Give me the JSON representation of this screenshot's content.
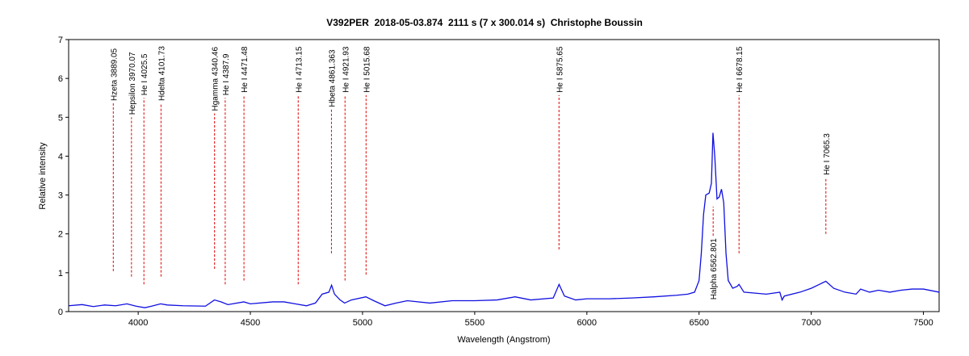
{
  "chart_data": {
    "type": "line",
    "title": "V392PER  2018-05-03.874  2111 s (7 x 300.014 s)  Christophe Boussin",
    "x_label": "Wavelength (Angstrom)",
    "y_label": "Relative intensity",
    "xlim": [
      3690,
      7570
    ],
    "ylim": [
      0,
      7
    ],
    "xticks": [
      4000,
      4500,
      5000,
      5500,
      6000,
      6500,
      7000,
      7500
    ],
    "yticks": [
      0,
      1,
      2,
      3,
      4,
      5,
      6,
      7
    ],
    "grid": false,
    "x": [
      3690,
      3750,
      3800,
      3850,
      3900,
      3950,
      3990,
      4030,
      4060,
      4100,
      4130,
      4200,
      4300,
      4340,
      4370,
      4400,
      4471,
      4500,
      4600,
      4650,
      4700,
      4750,
      4790,
      4820,
      4850,
      4862,
      4875,
      4900,
      4920,
      4950,
      5015,
      5050,
      5100,
      5150,
      5200,
      5300,
      5400,
      5500,
      5600,
      5680,
      5750,
      5850,
      5876,
      5900,
      5950,
      6000,
      6100,
      6200,
      6300,
      6400,
      6450,
      6480,
      6500,
      6510,
      6520,
      6530,
      6545,
      6555,
      6562,
      6570,
      6580,
      6590,
      6600,
      6610,
      6620,
      6630,
      6650,
      6670,
      6678,
      6700,
      6800,
      6860,
      6870,
      6880,
      6950,
      7000,
      7065,
      7100,
      7150,
      7200,
      7220,
      7260,
      7300,
      7350,
      7400,
      7450,
      7500,
      7570
    ],
    "series": [
      {
        "name": "V392PER",
        "color": "#1010e0",
        "values": [
          0.15,
          0.18,
          0.13,
          0.17,
          0.15,
          0.2,
          0.14,
          0.1,
          0.14,
          0.2,
          0.17,
          0.15,
          0.14,
          0.3,
          0.25,
          0.18,
          0.25,
          0.2,
          0.25,
          0.25,
          0.2,
          0.15,
          0.22,
          0.45,
          0.5,
          0.68,
          0.45,
          0.3,
          0.22,
          0.3,
          0.38,
          0.28,
          0.15,
          0.22,
          0.28,
          0.22,
          0.28,
          0.28,
          0.3,
          0.38,
          0.3,
          0.35,
          0.7,
          0.4,
          0.3,
          0.33,
          0.33,
          0.35,
          0.38,
          0.42,
          0.45,
          0.5,
          0.8,
          1.5,
          2.5,
          3.0,
          3.05,
          3.3,
          4.6,
          4.0,
          2.9,
          2.95,
          3.15,
          2.8,
          1.5,
          0.8,
          0.6,
          0.65,
          0.7,
          0.5,
          0.45,
          0.5,
          0.3,
          0.4,
          0.5,
          0.6,
          0.78,
          0.6,
          0.5,
          0.45,
          0.58,
          0.5,
          0.55,
          0.5,
          0.55,
          0.58,
          0.58,
          0.5
        ]
      }
    ],
    "annotation_color": "#e00000",
    "annotations": [
      {
        "label": "Hzeta 3889.05",
        "x": 3889.05,
        "ymin": 1.04,
        "ymax": 5.36,
        "position": "above"
      },
      {
        "label": "Hepsilon 3970.07",
        "x": 3970.07,
        "ymin": 0.9,
        "ymax": 5.0,
        "position": "above"
      },
      {
        "label": "He I 4025.5",
        "x": 4025.5,
        "ymin": 0.7,
        "ymax": 5.5,
        "position": "above"
      },
      {
        "label": "Hdelta 4101.73",
        "x": 4101.73,
        "ymin": 0.9,
        "ymax": 5.36,
        "position": "above"
      },
      {
        "label": "Hgamma 4340.46",
        "x": 4340.46,
        "ymin": 1.1,
        "ymax": 5.1,
        "position": "above"
      },
      {
        "label": "He I 4387.9",
        "x": 4387.9,
        "ymin": 0.7,
        "ymax": 5.5,
        "position": "above"
      },
      {
        "label": "He I 4471.48",
        "x": 4471.48,
        "ymin": 0.8,
        "ymax": 5.57,
        "position": "above"
      },
      {
        "label": "He I 4713.15",
        "x": 4713.15,
        "ymin": 0.7,
        "ymax": 5.57,
        "position": "above"
      },
      {
        "label": "Hbeta 4861.363",
        "x": 4861.363,
        "ymin": 1.5,
        "ymax": 5.2,
        "position": "above"
      },
      {
        "label": "He I 4921.93",
        "x": 4921.93,
        "ymin": 0.8,
        "ymax": 5.57,
        "position": "above"
      },
      {
        "label": "He I 5015.68",
        "x": 5015.68,
        "ymin": 0.95,
        "ymax": 5.57,
        "position": "above"
      },
      {
        "label": "He I 5875.65",
        "x": 5875.65,
        "ymin": 1.6,
        "ymax": 5.57,
        "position": "above"
      },
      {
        "label": "He I 6678.15",
        "x": 6678.15,
        "ymin": 1.5,
        "ymax": 5.57,
        "position": "above"
      },
      {
        "label": "He I 7065.3",
        "x": 7065.3,
        "ymin": 2.0,
        "ymax": 3.45,
        "position": "above"
      },
      {
        "label": "Halpha 6562.801",
        "x": 6562.801,
        "ymin": 1.95,
        "ymax": 2.7,
        "position": "below"
      }
    ]
  }
}
